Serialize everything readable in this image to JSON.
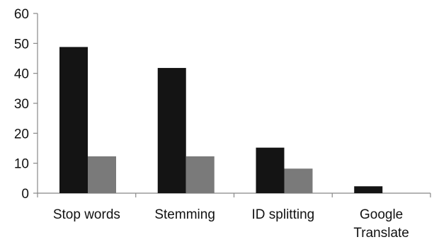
{
  "chart_data": {
    "type": "bar",
    "categories": [
      [
        "Stop words"
      ],
      [
        "Stemming"
      ],
      [
        "ID splitting"
      ],
      [
        "Google",
        "Translate"
      ]
    ],
    "series": [
      {
        "color": "#141414",
        "values": [
          48.8,
          41.8,
          15.2,
          2.3
        ]
      },
      {
        "color": "#7a7a7a",
        "values": [
          12.3,
          12.3,
          8.2,
          0
        ]
      }
    ],
    "ylim": [
      0,
      60
    ],
    "yticks": [
      "0",
      "10",
      "20",
      "30",
      "40",
      "50",
      "60"
    ],
    "title": "",
    "xlabel": "",
    "ylabel": "",
    "grid": false,
    "legend": "none"
  }
}
